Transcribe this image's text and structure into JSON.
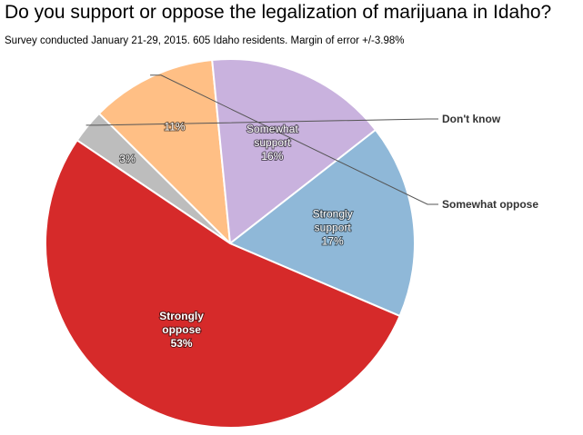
{
  "chart_data": {
    "type": "pie",
    "title": "Do you support or oppose the legalization of marijuana in Idaho?",
    "subtitle": "Survey conducted January 21-29, 2015. 605 Idaho residents. Margin of error +/-3.98%",
    "slices": [
      {
        "label": "Don't know",
        "value": 3,
        "display": "3%",
        "color": "#bdbdbd",
        "label_placement": "outside"
      },
      {
        "label": "Somewhat oppose",
        "value": 11,
        "display": "11%",
        "color": "#ffbf85",
        "label_placement": "outside"
      },
      {
        "label": "Somewhat support",
        "value": 16,
        "display": "16%",
        "color": "#c9b2de",
        "label_placement": "inside"
      },
      {
        "label": "Strongly support",
        "value": 17,
        "display": "17%",
        "color": "#8fb8d8",
        "label_placement": "inside"
      },
      {
        "label": "Strongly oppose",
        "value": 53,
        "display": "53%",
        "color": "#d62a2a",
        "label_placement": "inside"
      }
    ],
    "inside_labels": {
      "Somewhat support": [
        "Somewhat",
        "support"
      ],
      "Strongly support": [
        "Strongly",
        "support"
      ],
      "Strongly oppose": [
        "Strongly",
        "oppose"
      ]
    },
    "legend": "none"
  }
}
